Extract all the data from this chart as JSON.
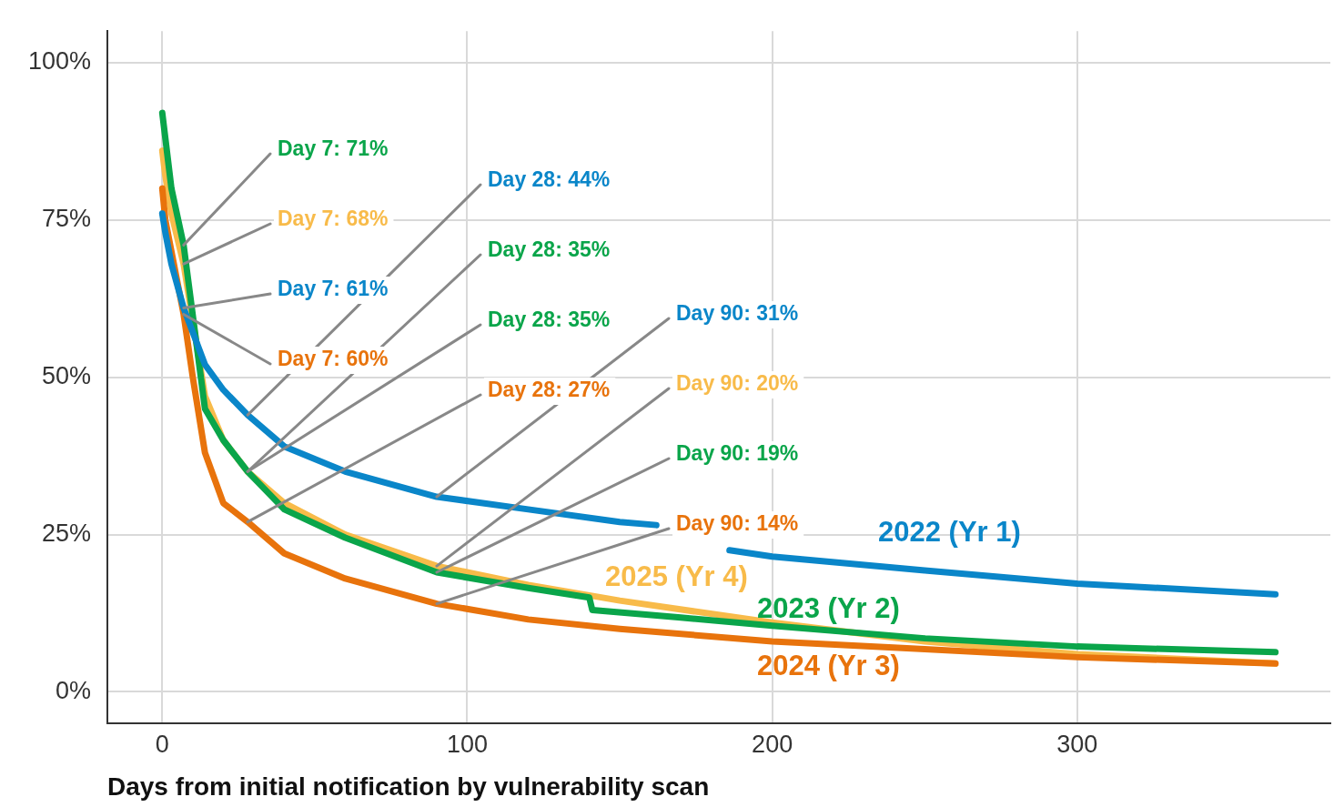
{
  "chart_data": {
    "type": "line",
    "xlabel": "Days from initial notification by vulnerability scan",
    "xlim": [
      -18,
      383
    ],
    "xticks": [
      0,
      100,
      200,
      300
    ],
    "ylim": [
      -5,
      105
    ],
    "yticks": [
      {
        "value": 0,
        "label": "0%"
      },
      {
        "value": 25,
        "label": "25%"
      },
      {
        "value": 50,
        "label": "50%"
      },
      {
        "value": 75,
        "label": "75%"
      },
      {
        "value": 100,
        "label": "100%"
      }
    ],
    "grid": true,
    "legend": false,
    "marker": "none",
    "line_style": "solid",
    "series": [
      {
        "name": "2022 (Yr 1)",
        "color": "#0a86c9",
        "x": [
          0,
          1,
          3,
          7,
          14,
          20,
          28,
          40,
          60,
          90,
          120,
          150,
          162,
          175,
          186,
          200,
          250,
          300,
          365
        ],
        "values": [
          76,
          73,
          68,
          61,
          52,
          48,
          44,
          39,
          35,
          31,
          29,
          27,
          26.5,
          null,
          22.5,
          21.5,
          19.3,
          17.2,
          15.5
        ]
      },
      {
        "name": "2023 (Yr 2)",
        "color": "#0aa54a",
        "x": [
          0,
          1,
          3,
          7,
          14,
          20,
          28,
          40,
          60,
          90,
          120,
          140,
          141,
          170,
          200,
          250,
          300,
          365
        ],
        "values": [
          92,
          88,
          80,
          71,
          45,
          40,
          35,
          29,
          24.5,
          19,
          16.5,
          15,
          13,
          11.8,
          10.5,
          8.5,
          7.2,
          6.3
        ]
      },
      {
        "name": "2024 (Yr 3)",
        "color": "#e8730c",
        "x": [
          0,
          1,
          7,
          10,
          14,
          20,
          28,
          40,
          60,
          90,
          120,
          150,
          200,
          250,
          300,
          365
        ],
        "values": [
          80,
          75,
          60,
          50,
          38,
          30,
          27,
          22,
          18,
          14,
          11.5,
          10,
          8,
          6.8,
          5.5,
          4.5
        ]
      },
      {
        "name": "2025 (Yr 4)",
        "color": "#f8bb4a",
        "x": [
          0,
          1,
          3,
          7,
          14,
          20,
          28,
          40,
          60,
          90,
          120,
          150,
          200,
          250,
          300,
          365
        ],
        "values": [
          86,
          82,
          76,
          68,
          47,
          40,
          35,
          30,
          25,
          20,
          17,
          14.5,
          11,
          8,
          6,
          4.5
        ]
      }
    ],
    "annotations": [
      {
        "text": "Day 7: 71%",
        "x": 7,
        "y": 71
      },
      {
        "text": "Day 7: 68%",
        "x": 7,
        "y": 68
      },
      {
        "text": "Day 7: 61%",
        "x": 7,
        "y": 61
      },
      {
        "text": "Day 7: 60%",
        "x": 7,
        "y": 60
      },
      {
        "text": "Day 28: 44%",
        "x": 28,
        "y": 44
      },
      {
        "text": "Day 28: 35%",
        "x": 28,
        "y": 35
      },
      {
        "text": "Day 28: 35%",
        "x": 28,
        "y": 35
      },
      {
        "text": "Day 28: 27%",
        "x": 28,
        "y": 27
      },
      {
        "text": "Day 90: 31%",
        "x": 90,
        "y": 31
      },
      {
        "text": "Day 90: 20%",
        "x": 90,
        "y": 20
      },
      {
        "text": "Day 90: 19%",
        "x": 90,
        "y": 19
      },
      {
        "text": "Day 90: 14%",
        "x": 90,
        "y": 14
      }
    ]
  }
}
